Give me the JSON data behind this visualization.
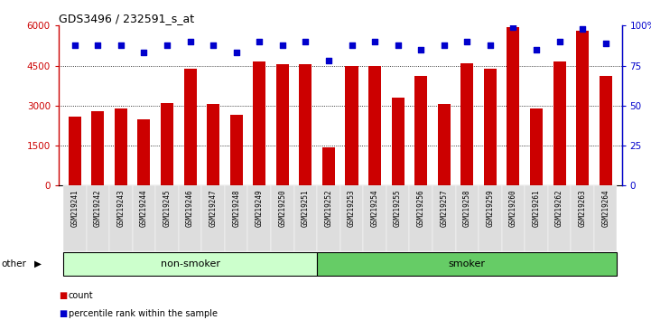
{
  "title": "GDS3496 / 232591_s_at",
  "samples": [
    "GSM219241",
    "GSM219242",
    "GSM219243",
    "GSM219244",
    "GSM219245",
    "GSM219246",
    "GSM219247",
    "GSM219248",
    "GSM219249",
    "GSM219250",
    "GSM219251",
    "GSM219252",
    "GSM219253",
    "GSM219254",
    "GSM219255",
    "GSM219256",
    "GSM219257",
    "GSM219258",
    "GSM219259",
    "GSM219260",
    "GSM219261",
    "GSM219262",
    "GSM219263",
    "GSM219264"
  ],
  "counts": [
    2600,
    2800,
    2900,
    2500,
    3100,
    4400,
    3050,
    2650,
    4650,
    4550,
    4550,
    1450,
    4500,
    4500,
    3300,
    4100,
    3050,
    4600,
    4400,
    5950,
    2900,
    4650,
    5800,
    4100
  ],
  "percentiles": [
    88,
    88,
    88,
    83,
    88,
    90,
    88,
    83,
    90,
    88,
    90,
    78,
    88,
    90,
    88,
    85,
    88,
    90,
    88,
    99,
    85,
    90,
    98,
    89
  ],
  "non_smoker_count": 11,
  "smoker_count": 13,
  "bar_color": "#cc0000",
  "dot_color": "#0000cc",
  "non_smoker_bg": "#ccffcc",
  "smoker_bg": "#66cc66",
  "tick_bg": "#dddddd",
  "ylim_left": [
    0,
    6000
  ],
  "ylim_right": [
    0,
    100
  ],
  "yticks_left": [
    0,
    1500,
    3000,
    4500,
    6000
  ],
  "ytick_labels_left": [
    "0",
    "1500",
    "3000",
    "4500",
    "6000"
  ],
  "yticks_right": [
    0,
    25,
    50,
    75,
    100
  ],
  "ytick_labels_right": [
    "0",
    "25",
    "50",
    "75",
    "100%"
  ],
  "grid_values": [
    1500,
    3000,
    4500
  ],
  "legend_count_label": "count",
  "legend_percentile_label": "percentile rank within the sample",
  "label_nonsmoker": "non-smoker",
  "label_smoker": "smoker",
  "label_other": "other"
}
